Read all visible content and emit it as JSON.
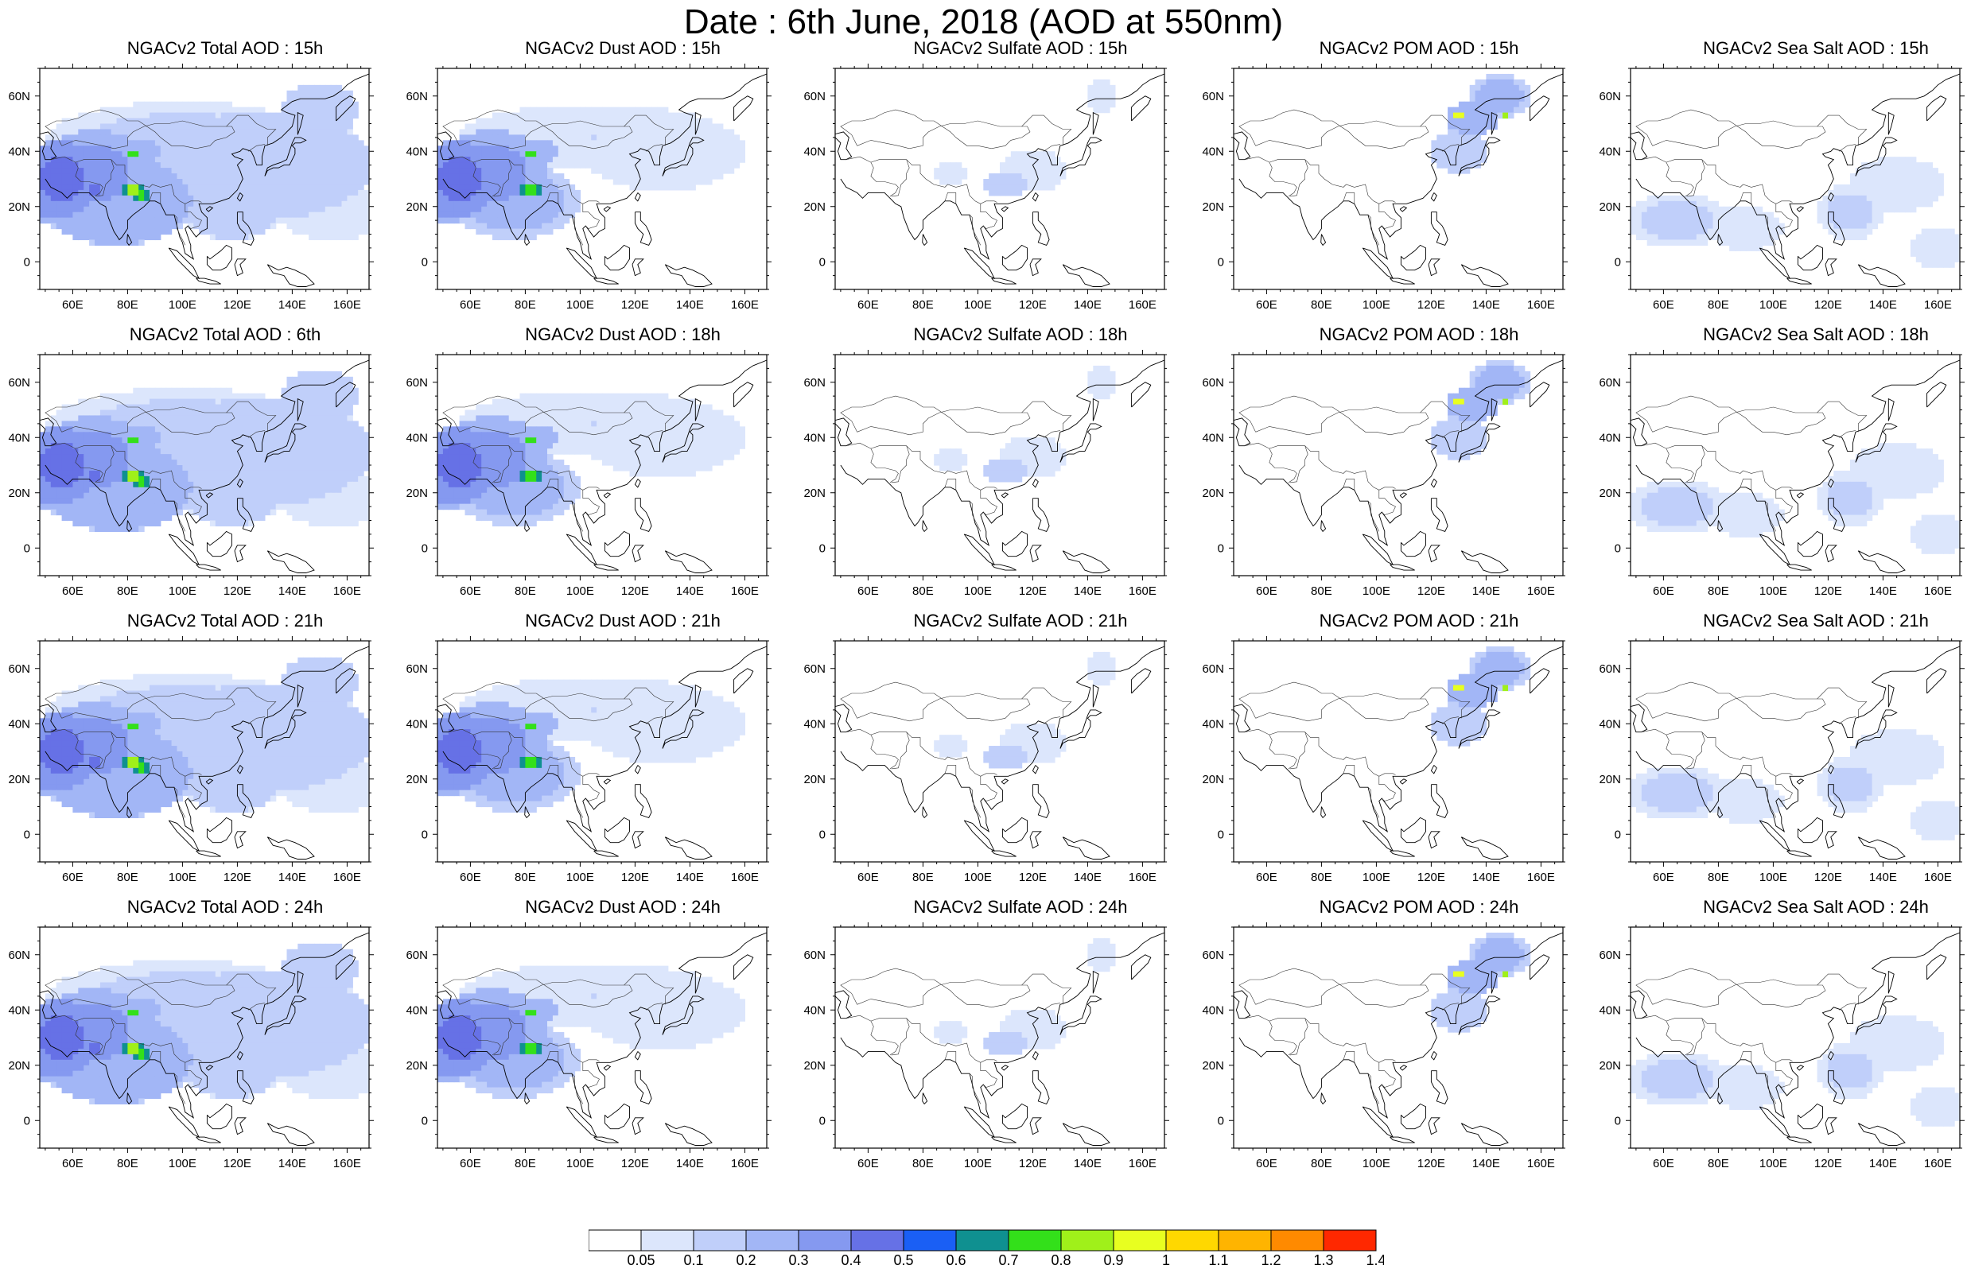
{
  "title": "Date : 6th June, 2018 (AOD at 550nm)",
  "axes": {
    "x_ticks": [
      {
        "label": "60E",
        "lon": 60
      },
      {
        "label": "80E",
        "lon": 80
      },
      {
        "label": "100E",
        "lon": 100
      },
      {
        "label": "120E",
        "lon": 120
      },
      {
        "label": "140E",
        "lon": 140
      },
      {
        "label": "160E",
        "lon": 160
      }
    ],
    "y_ticks": [
      {
        "label": "60N",
        "lat": 60
      },
      {
        "label": "40N",
        "lat": 40
      },
      {
        "label": "20N",
        "lat": 20
      },
      {
        "label": "0",
        "lat": 0
      }
    ],
    "lon_range": [
      48,
      168
    ],
    "lat_range": [
      -10,
      70
    ]
  },
  "columns": [
    "Total",
    "Dust",
    "Sulfate",
    "POM",
    "Sea Salt"
  ],
  "hours": [
    "15h",
    "18h",
    "21h",
    "24h"
  ],
  "panels": [
    {
      "title": "NGACv2 Total AOD : 15h",
      "species": "total",
      "hour": 15
    },
    {
      "title": "NGACv2 Dust AOD : 15h",
      "species": "dust",
      "hour": 15
    },
    {
      "title": "NGACv2 Sulfate AOD : 15h",
      "species": "sulfate",
      "hour": 15
    },
    {
      "title": "NGACv2 POM AOD : 15h",
      "species": "pom",
      "hour": 15
    },
    {
      "title": "NGACv2 Sea Salt AOD : 15h",
      "species": "seasalt",
      "hour": 15
    },
    {
      "title": "NGACv2 Total AOD : 6th",
      "species": "total",
      "hour": 18
    },
    {
      "title": "NGACv2 Dust AOD : 18h",
      "species": "dust",
      "hour": 18
    },
    {
      "title": "NGACv2 Sulfate AOD : 18h",
      "species": "sulfate",
      "hour": 18
    },
    {
      "title": "NGACv2 POM AOD : 18h",
      "species": "pom",
      "hour": 18
    },
    {
      "title": "NGACv2 Sea Salt AOD : 18h",
      "species": "seasalt",
      "hour": 18
    },
    {
      "title": "NGACv2 Total AOD : 21h",
      "species": "total",
      "hour": 21
    },
    {
      "title": "NGACv2 Dust AOD : 21h",
      "species": "dust",
      "hour": 21
    },
    {
      "title": "NGACv2 Sulfate AOD : 21h",
      "species": "sulfate",
      "hour": 21
    },
    {
      "title": "NGACv2 POM AOD : 21h",
      "species": "pom",
      "hour": 21
    },
    {
      "title": "NGACv2 Sea Salt AOD : 21h",
      "species": "seasalt",
      "hour": 21
    },
    {
      "title": "NGACv2 Total AOD : 24h",
      "species": "total",
      "hour": 24
    },
    {
      "title": "NGACv2 Dust AOD : 24h",
      "species": "dust",
      "hour": 24
    },
    {
      "title": "NGACv2 Sulfate AOD : 24h",
      "species": "sulfate",
      "hour": 24
    },
    {
      "title": "NGACv2 POM AOD : 24h",
      "species": "pom",
      "hour": 24
    },
    {
      "title": "NGACv2 Sea Salt  AOD : 24h",
      "species": "seasalt",
      "hour": 24
    }
  ],
  "colorbar": {
    "labels": [
      "0.05",
      "0.1",
      "0.2",
      "0.3",
      "0.4",
      "0.5",
      "0.6",
      "0.7",
      "0.8",
      "0.9",
      "1",
      "1.1",
      "1.2",
      "1.3",
      "1.4"
    ],
    "colors": [
      "#ffffff",
      "#dce6fc",
      "#c0cffa",
      "#a2b6f6",
      "#8599f0",
      "#6671e6",
      "#1a5ff5",
      "#0f9090",
      "#33e01a",
      "#a0f01a",
      "#e8ff20",
      "#ffd800",
      "#ffb400",
      "#ff8a00",
      "#ff2800"
    ]
  },
  "features": {
    "total": [
      {
        "lon": 56,
        "lat": 30,
        "v": 0.45,
        "rl": 14,
        "ra": 14
      },
      {
        "lon": 68,
        "lat": 32,
        "v": 0.35,
        "rl": 20,
        "ra": 16
      },
      {
        "lon": 52,
        "lat": 22,
        "v": 0.4,
        "rl": 8,
        "ra": 8
      },
      {
        "lon": 76,
        "lat": 22,
        "v": 0.3,
        "rl": 28,
        "ra": 16
      },
      {
        "lon": 80,
        "lat": 40,
        "v": 0.3,
        "rl": 12,
        "ra": 5
      },
      {
        "lon": 100,
        "lat": 44,
        "v": 0.12,
        "rl": 50,
        "ra": 14
      },
      {
        "lon": 130,
        "lat": 35,
        "v": 0.15,
        "rl": 40,
        "ra": 20
      },
      {
        "lon": 82,
        "lat": 26,
        "v": 0.9,
        "rl": 4,
        "ra": 3
      },
      {
        "lon": 85,
        "lat": 24,
        "v": 0.75,
        "rl": 3,
        "ra": 3
      },
      {
        "lon": 82,
        "lat": 39,
        "v": 0.8,
        "rl": 2.5,
        "ra": 2
      },
      {
        "lon": 68,
        "lat": 26,
        "v": 0.55,
        "rl": 3,
        "ra": 2
      },
      {
        "lon": 118,
        "lat": 22,
        "v": 0.15,
        "rl": 20,
        "ra": 14
      },
      {
        "lon": 150,
        "lat": 55,
        "v": 0.2,
        "rl": 14,
        "ra": 10
      },
      {
        "lon": 155,
        "lat": 18,
        "v": 0.08,
        "rl": 20,
        "ra": 10
      }
    ],
    "dust": [
      {
        "lon": 56,
        "lat": 30,
        "v": 0.45,
        "rl": 14,
        "ra": 14
      },
      {
        "lon": 68,
        "lat": 32,
        "v": 0.35,
        "rl": 20,
        "ra": 16
      },
      {
        "lon": 52,
        "lat": 22,
        "v": 0.4,
        "rl": 8,
        "ra": 8
      },
      {
        "lon": 76,
        "lat": 22,
        "v": 0.25,
        "rl": 24,
        "ra": 14
      },
      {
        "lon": 80,
        "lat": 40,
        "v": 0.3,
        "rl": 12,
        "ra": 5
      },
      {
        "lon": 105,
        "lat": 45,
        "v": 0.1,
        "rl": 50,
        "ra": 12
      },
      {
        "lon": 82,
        "lat": 26,
        "v": 0.85,
        "rl": 4,
        "ra": 3
      },
      {
        "lon": 82,
        "lat": 39,
        "v": 0.8,
        "rl": 2.5,
        "ra": 2
      },
      {
        "lon": 130,
        "lat": 40,
        "v": 0.08,
        "rl": 30,
        "ra": 14
      }
    ],
    "sulfate": [
      {
        "lon": 110,
        "lat": 28,
        "v": 0.2,
        "rl": 8,
        "ra": 4
      },
      {
        "lon": 120,
        "lat": 33,
        "v": 0.1,
        "rl": 12,
        "ra": 8
      },
      {
        "lon": 90,
        "lat": 32,
        "v": 0.08,
        "rl": 6,
        "ra": 4
      },
      {
        "lon": 145,
        "lat": 60,
        "v": 0.1,
        "rl": 6,
        "ra": 6
      }
    ],
    "pom": [
      {
        "lon": 135,
        "lat": 52,
        "v": 0.3,
        "rl": 10,
        "ra": 6
      },
      {
        "lon": 130,
        "lat": 53,
        "v": 1.0,
        "rl": 2,
        "ra": 1.5
      },
      {
        "lon": 147,
        "lat": 53,
        "v": 0.8,
        "rl": 2,
        "ra": 2
      },
      {
        "lon": 145,
        "lat": 60,
        "v": 0.25,
        "rl": 12,
        "ra": 8
      },
      {
        "lon": 130,
        "lat": 40,
        "v": 0.15,
        "rl": 10,
        "ra": 8
      }
    ],
    "seasalt": [
      {
        "lon": 65,
        "lat": 15,
        "v": 0.12,
        "rl": 20,
        "ra": 10
      },
      {
        "lon": 90,
        "lat": 12,
        "v": 0.1,
        "rl": 14,
        "ra": 8
      },
      {
        "lon": 128,
        "lat": 18,
        "v": 0.12,
        "rl": 12,
        "ra": 10
      },
      {
        "lon": 145,
        "lat": 28,
        "v": 0.08,
        "rl": 18,
        "ra": 10
      },
      {
        "lon": 160,
        "lat": 5,
        "v": 0.08,
        "rl": 10,
        "ra": 8
      }
    ]
  }
}
